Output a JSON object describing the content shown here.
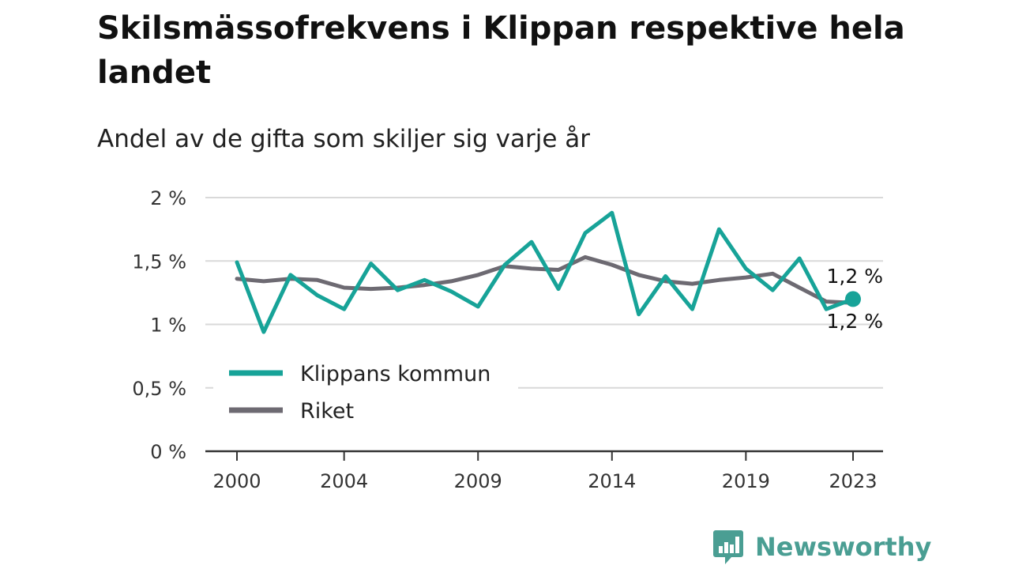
{
  "title": "Skilsmässofrekvens i Klippan respektive hela landet",
  "subtitle": "Andel av de gifta som skiljer sig varje år",
  "brand": {
    "name": "Newsworthy",
    "icon": "newsworthy-logo-icon"
  },
  "colors": {
    "klippan": "#17a398",
    "riket": "#6d6a72",
    "grid": "#d9d9d9",
    "axis": "#333333",
    "brand": "#4a9e93"
  },
  "chart_data": {
    "type": "line",
    "x": [
      2000,
      2001,
      2002,
      2003,
      2004,
      2005,
      2006,
      2007,
      2008,
      2009,
      2010,
      2011,
      2012,
      2013,
      2014,
      2015,
      2016,
      2017,
      2018,
      2019,
      2020,
      2021,
      2022,
      2023
    ],
    "x_tick_values": [
      2000,
      2004,
      2009,
      2014,
      2019,
      2023
    ],
    "x_tick_labels": [
      "2000",
      "2004",
      "2009",
      "2014",
      "2019",
      "2023"
    ],
    "y_ticks": [
      0,
      0.5,
      1,
      1.5,
      2
    ],
    "y_tick_labels": [
      "0 %",
      "0,5 %",
      "1 %",
      "1,5 %",
      "2 %"
    ],
    "ylim": [
      0,
      2
    ],
    "grid": true,
    "legend_position": "lower-left",
    "series": [
      {
        "name": "Klippans kommun",
        "values": [
          1.49,
          0.94,
          1.39,
          1.23,
          1.12,
          1.48,
          1.27,
          1.35,
          1.26,
          1.14,
          1.47,
          1.65,
          1.28,
          1.72,
          1.88,
          1.08,
          1.38,
          1.12,
          1.75,
          1.44,
          1.27,
          1.52,
          1.12,
          1.2
        ],
        "end_label": "1,2 %"
      },
      {
        "name": "Riket",
        "values": [
          1.36,
          1.34,
          1.36,
          1.35,
          1.29,
          1.28,
          1.29,
          1.31,
          1.34,
          1.39,
          1.46,
          1.44,
          1.43,
          1.53,
          1.47,
          1.39,
          1.34,
          1.32,
          1.35,
          1.37,
          1.4,
          1.29,
          1.18,
          1.17
        ],
        "end_label": "1,2 %"
      }
    ]
  }
}
